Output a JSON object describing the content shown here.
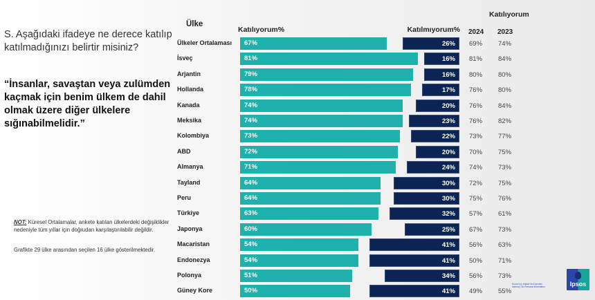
{
  "question": "S. Aşağıdaki ifadeye ne derece katılıp katılmadığınızı belirtir misiniz?",
  "quote": "“İnsanlar, savaştan veya zulümden kaçmak için benim ülkem de dahil olmak üzere diğer ülkelere sığınabilmelidir.”",
  "note_label": "NOT:",
  "note_text": " Küresel Ortalamalar, ankete katılan ülkelerdeki değişiklikler nedeniyle tüm yıllar için doğrudan karşılaştırılabilir değildir.",
  "note2": "Grafikte 29 ülke arasından seçilen 16 ülke gösterilmektedir.",
  "classification": "Kurum İçi | Kişisel Veri İçermez\nInternal | No Personal Information",
  "logo_text": "Ipsos",
  "colors": {
    "agree": "#20b1ad",
    "disagree": "#0c2453"
  },
  "chart_data": {
    "type": "bar",
    "orientation": "horizontal-diverging",
    "headers": {
      "country": "Ülke",
      "agree": "Katılıyorum%",
      "disagree": "Katılmıyorum%",
      "trend_group": "Katılıyorum",
      "year1": "2024",
      "year2": "2023"
    },
    "categories": [
      "Ülkeler Ortalaması",
      "İsveç",
      "Arjantin",
      "Hollanda",
      "Kanada",
      "Meksika",
      "Kolombiya",
      "ABD",
      "Almanya",
      "Tayland",
      "Peru",
      "Türkiye",
      "Japonya",
      "Macaristan",
      "Endonezya",
      "Polonya",
      "Güney Kore"
    ],
    "series": [
      {
        "name": "Katılıyorum%",
        "values": [
          67,
          81,
          79,
          78,
          74,
          74,
          73,
          72,
          71,
          64,
          64,
          63,
          60,
          54,
          54,
          51,
          50
        ]
      },
      {
        "name": "Katılmıyorum%",
        "values": [
          26,
          16,
          16,
          17,
          20,
          23,
          22,
          20,
          24,
          30,
          30,
          32,
          25,
          41,
          41,
          34,
          41
        ]
      }
    ],
    "trend": {
      "2024": [
        "69%",
        "81%",
        "80%",
        "76%",
        "76%",
        "76%",
        "73%",
        "70%",
        "74%",
        "72%",
        "75%",
        "57%",
        "67%",
        "56%",
        "50%",
        "56%",
        "49%"
      ],
      "2023": [
        "74%",
        "84%",
        "80%",
        "80%",
        "84%",
        "82%",
        "77%",
        "75%",
        "73%",
        "75%",
        "76%",
        "61%",
        "73%",
        "63%",
        "71%",
        "73%",
        "55%"
      ]
    },
    "xlim": [
      0,
      100
    ]
  }
}
